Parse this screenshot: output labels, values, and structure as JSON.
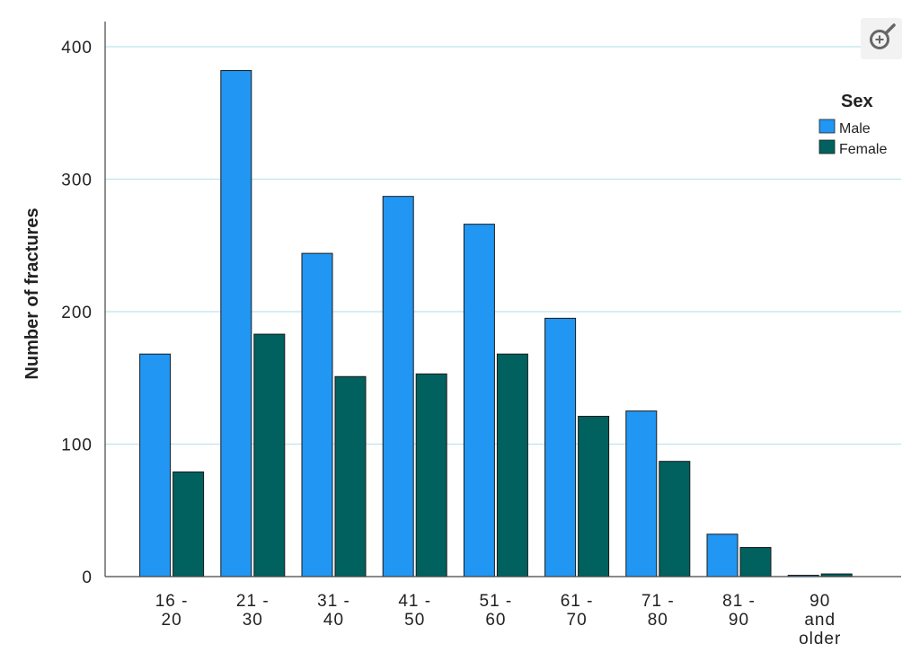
{
  "chart_data": {
    "type": "bar",
    "title": "",
    "xlabel": "",
    "ylabel": "Number of fractures",
    "ylim": [
      0,
      420
    ],
    "yticks": [
      0,
      100,
      200,
      300,
      400
    ],
    "grid": true,
    "legend_title": "Sex",
    "legend_position": "top-right",
    "categories": [
      [
        "16 -",
        "20"
      ],
      [
        "21 -",
        "30"
      ],
      [
        "31 -",
        "40"
      ],
      [
        "41 -",
        "50"
      ],
      [
        "51 -",
        "60"
      ],
      [
        "61 -",
        "70"
      ],
      [
        "71 -",
        "80"
      ],
      [
        "81 -",
        "90"
      ],
      [
        "90",
        "and",
        "older"
      ]
    ],
    "series": [
      {
        "name": "Male",
        "color": "#2196f3",
        "values": [
          168,
          382,
          244,
          287,
          266,
          195,
          125,
          32,
          1
        ]
      },
      {
        "name": "Female",
        "color": "#00615f",
        "values": [
          79,
          183,
          151,
          153,
          168,
          121,
          87,
          22,
          2
        ]
      }
    ]
  },
  "zoom_icon": "zoom-in-icon"
}
